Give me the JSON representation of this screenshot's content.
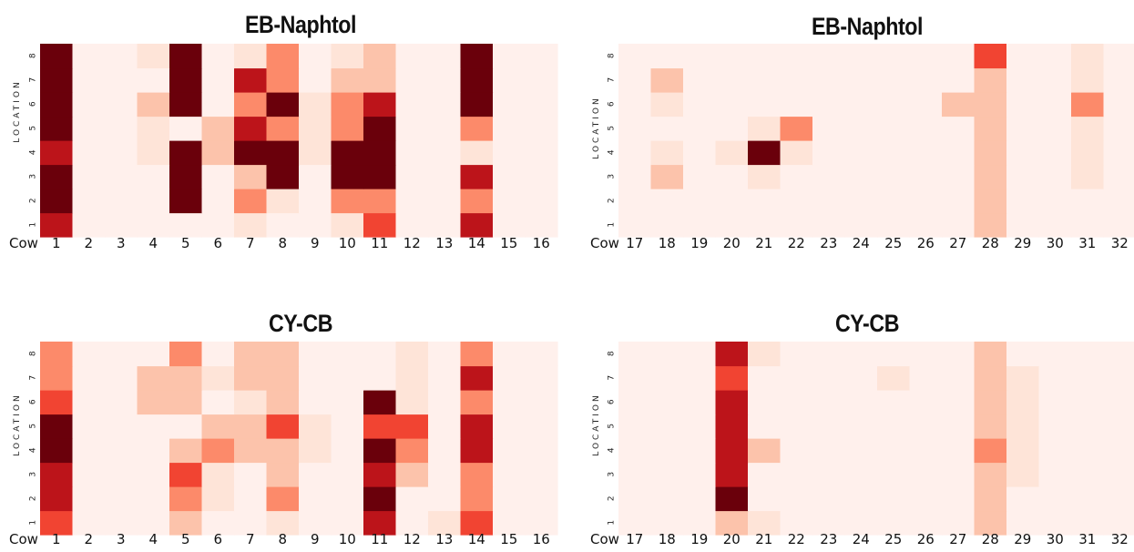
{
  "colors": {
    "scale": [
      "#fff0ec",
      "#fee4d8",
      "#fcc3ab",
      "#fc8a6a",
      "#f14432",
      "#bc141a",
      "#6a000b"
    ]
  },
  "chart_data": [
    {
      "type": "heatmap",
      "title": "EB-Naphtol",
      "xlabel": "Cow",
      "ylabel": "LOCATION",
      "x": [
        "1",
        "2",
        "3",
        "4",
        "5",
        "6",
        "7",
        "8",
        "9",
        "10",
        "11",
        "12",
        "13",
        "14",
        "15",
        "16"
      ],
      "y": [
        "1",
        "2",
        "3",
        "4",
        "5",
        "6",
        "7",
        "8"
      ],
      "values": [
        [
          5,
          0,
          0,
          0,
          0,
          0,
          1,
          0,
          0,
          1,
          4,
          0,
          0,
          5,
          0,
          0
        ],
        [
          6,
          0,
          0,
          0,
          6,
          0,
          3,
          1,
          0,
          3,
          3,
          0,
          0,
          3,
          0,
          0
        ],
        [
          6,
          0,
          0,
          0,
          6,
          0,
          2,
          6,
          0,
          6,
          6,
          0,
          0,
          5,
          0,
          0
        ],
        [
          5,
          0,
          0,
          1,
          6,
          2,
          6,
          6,
          1,
          6,
          6,
          0,
          0,
          1,
          0,
          0
        ],
        [
          6,
          0,
          0,
          1,
          0,
          2,
          5,
          3,
          1,
          3,
          6,
          0,
          0,
          3,
          0,
          0
        ],
        [
          6,
          0,
          0,
          2,
          6,
          0,
          3,
          6,
          1,
          3,
          5,
          0,
          0,
          6,
          0,
          0
        ],
        [
          6,
          0,
          0,
          0,
          6,
          0,
          5,
          3,
          0,
          2,
          2,
          0,
          0,
          6,
          0,
          0
        ],
        [
          6,
          0,
          0,
          1,
          6,
          0,
          1,
          3,
          0,
          1,
          2,
          0,
          0,
          6,
          0,
          0
        ]
      ]
    },
    {
      "type": "heatmap",
      "title": "EB-Naphtol",
      "xlabel": "Cow",
      "ylabel": "LOCATION",
      "x": [
        "17",
        "18",
        "19",
        "20",
        "21",
        "22",
        "23",
        "24",
        "25",
        "26",
        "27",
        "28",
        "29",
        "30",
        "31",
        "32"
      ],
      "y": [
        "1",
        "2",
        "3",
        "4",
        "5",
        "6",
        "7",
        "8"
      ],
      "values": [
        [
          0,
          0,
          0,
          0,
          0,
          0,
          0,
          0,
          0,
          0,
          0,
          2,
          0,
          0,
          0,
          0
        ],
        [
          0,
          0,
          0,
          0,
          0,
          0,
          0,
          0,
          0,
          0,
          0,
          2,
          0,
          0,
          0,
          0
        ],
        [
          0,
          2,
          0,
          0,
          1,
          0,
          0,
          0,
          0,
          0,
          0,
          2,
          0,
          0,
          1,
          0
        ],
        [
          0,
          1,
          0,
          1,
          6,
          1,
          0,
          0,
          0,
          0,
          0,
          2,
          0,
          0,
          1,
          0
        ],
        [
          0,
          0,
          0,
          0,
          1,
          3,
          0,
          0,
          0,
          0,
          0,
          2,
          0,
          0,
          1,
          0
        ],
        [
          0,
          1,
          0,
          0,
          0,
          0,
          0,
          0,
          0,
          0,
          2,
          2,
          0,
          0,
          3,
          0
        ],
        [
          0,
          2,
          0,
          0,
          0,
          0,
          0,
          0,
          0,
          0,
          0,
          2,
          0,
          0,
          1,
          0
        ],
        [
          0,
          0,
          0,
          0,
          0,
          0,
          0,
          0,
          0,
          0,
          0,
          4,
          0,
          0,
          1,
          0
        ]
      ]
    },
    {
      "type": "heatmap",
      "title": "CY-CB",
      "xlabel": "Cow",
      "ylabel": "LOCATION",
      "x": [
        "1",
        "2",
        "3",
        "4",
        "5",
        "6",
        "7",
        "8",
        "9",
        "10",
        "11",
        "12",
        "13",
        "14",
        "15",
        "16"
      ],
      "y": [
        "1",
        "2",
        "3",
        "4",
        "5",
        "6",
        "7",
        "8"
      ],
      "values": [
        [
          4,
          0,
          0,
          0,
          2,
          0,
          0,
          1,
          0,
          0,
          5,
          0,
          1,
          4,
          0,
          0
        ],
        [
          5,
          0,
          0,
          0,
          3,
          1,
          0,
          3,
          0,
          0,
          6,
          0,
          0,
          3,
          0,
          0
        ],
        [
          5,
          0,
          0,
          0,
          4,
          1,
          0,
          2,
          0,
          0,
          5,
          2,
          0,
          3,
          0,
          0
        ],
        [
          6,
          0,
          0,
          0,
          2,
          3,
          2,
          2,
          1,
          0,
          6,
          3,
          0,
          5,
          0,
          0
        ],
        [
          6,
          0,
          0,
          0,
          0,
          2,
          2,
          4,
          1,
          0,
          4,
          4,
          0,
          5,
          0,
          0
        ],
        [
          4,
          0,
          0,
          2,
          2,
          0,
          1,
          2,
          0,
          0,
          6,
          1,
          0,
          3,
          0,
          0
        ],
        [
          3,
          0,
          0,
          2,
          2,
          1,
          2,
          2,
          0,
          0,
          0,
          1,
          0,
          5,
          0,
          0
        ],
        [
          3,
          0,
          0,
          0,
          3,
          0,
          2,
          2,
          0,
          0,
          0,
          1,
          0,
          3,
          0,
          0
        ]
      ]
    },
    {
      "type": "heatmap",
      "title": "CY-CB",
      "xlabel": "Cow",
      "ylabel": "LOCATION",
      "x": [
        "17",
        "18",
        "19",
        "20",
        "21",
        "22",
        "23",
        "24",
        "25",
        "26",
        "27",
        "28",
        "29",
        "30",
        "31",
        "32"
      ],
      "y": [
        "1",
        "2",
        "3",
        "4",
        "5",
        "6",
        "7",
        "8"
      ],
      "values": [
        [
          0,
          0,
          0,
          2,
          1,
          0,
          0,
          0,
          0,
          0,
          0,
          2,
          0,
          0,
          0,
          0
        ],
        [
          0,
          0,
          0,
          6,
          0,
          0,
          0,
          0,
          0,
          0,
          0,
          2,
          0,
          0,
          0,
          0
        ],
        [
          0,
          0,
          0,
          5,
          0,
          0,
          0,
          0,
          0,
          0,
          0,
          2,
          1,
          0,
          0,
          0
        ],
        [
          0,
          0,
          0,
          5,
          2,
          0,
          0,
          0,
          0,
          0,
          0,
          3,
          1,
          0,
          0,
          0
        ],
        [
          0,
          0,
          0,
          5,
          0,
          0,
          0,
          0,
          0,
          0,
          0,
          2,
          1,
          0,
          0,
          0
        ],
        [
          0,
          0,
          0,
          5,
          0,
          0,
          0,
          0,
          0,
          0,
          0,
          2,
          1,
          0,
          0,
          0
        ],
        [
          0,
          0,
          0,
          4,
          0,
          0,
          0,
          0,
          1,
          0,
          0,
          2,
          1,
          0,
          0,
          0
        ],
        [
          0,
          0,
          0,
          5,
          1,
          0,
          0,
          0,
          0,
          0,
          0,
          2,
          0,
          0,
          0,
          0
        ]
      ]
    }
  ]
}
